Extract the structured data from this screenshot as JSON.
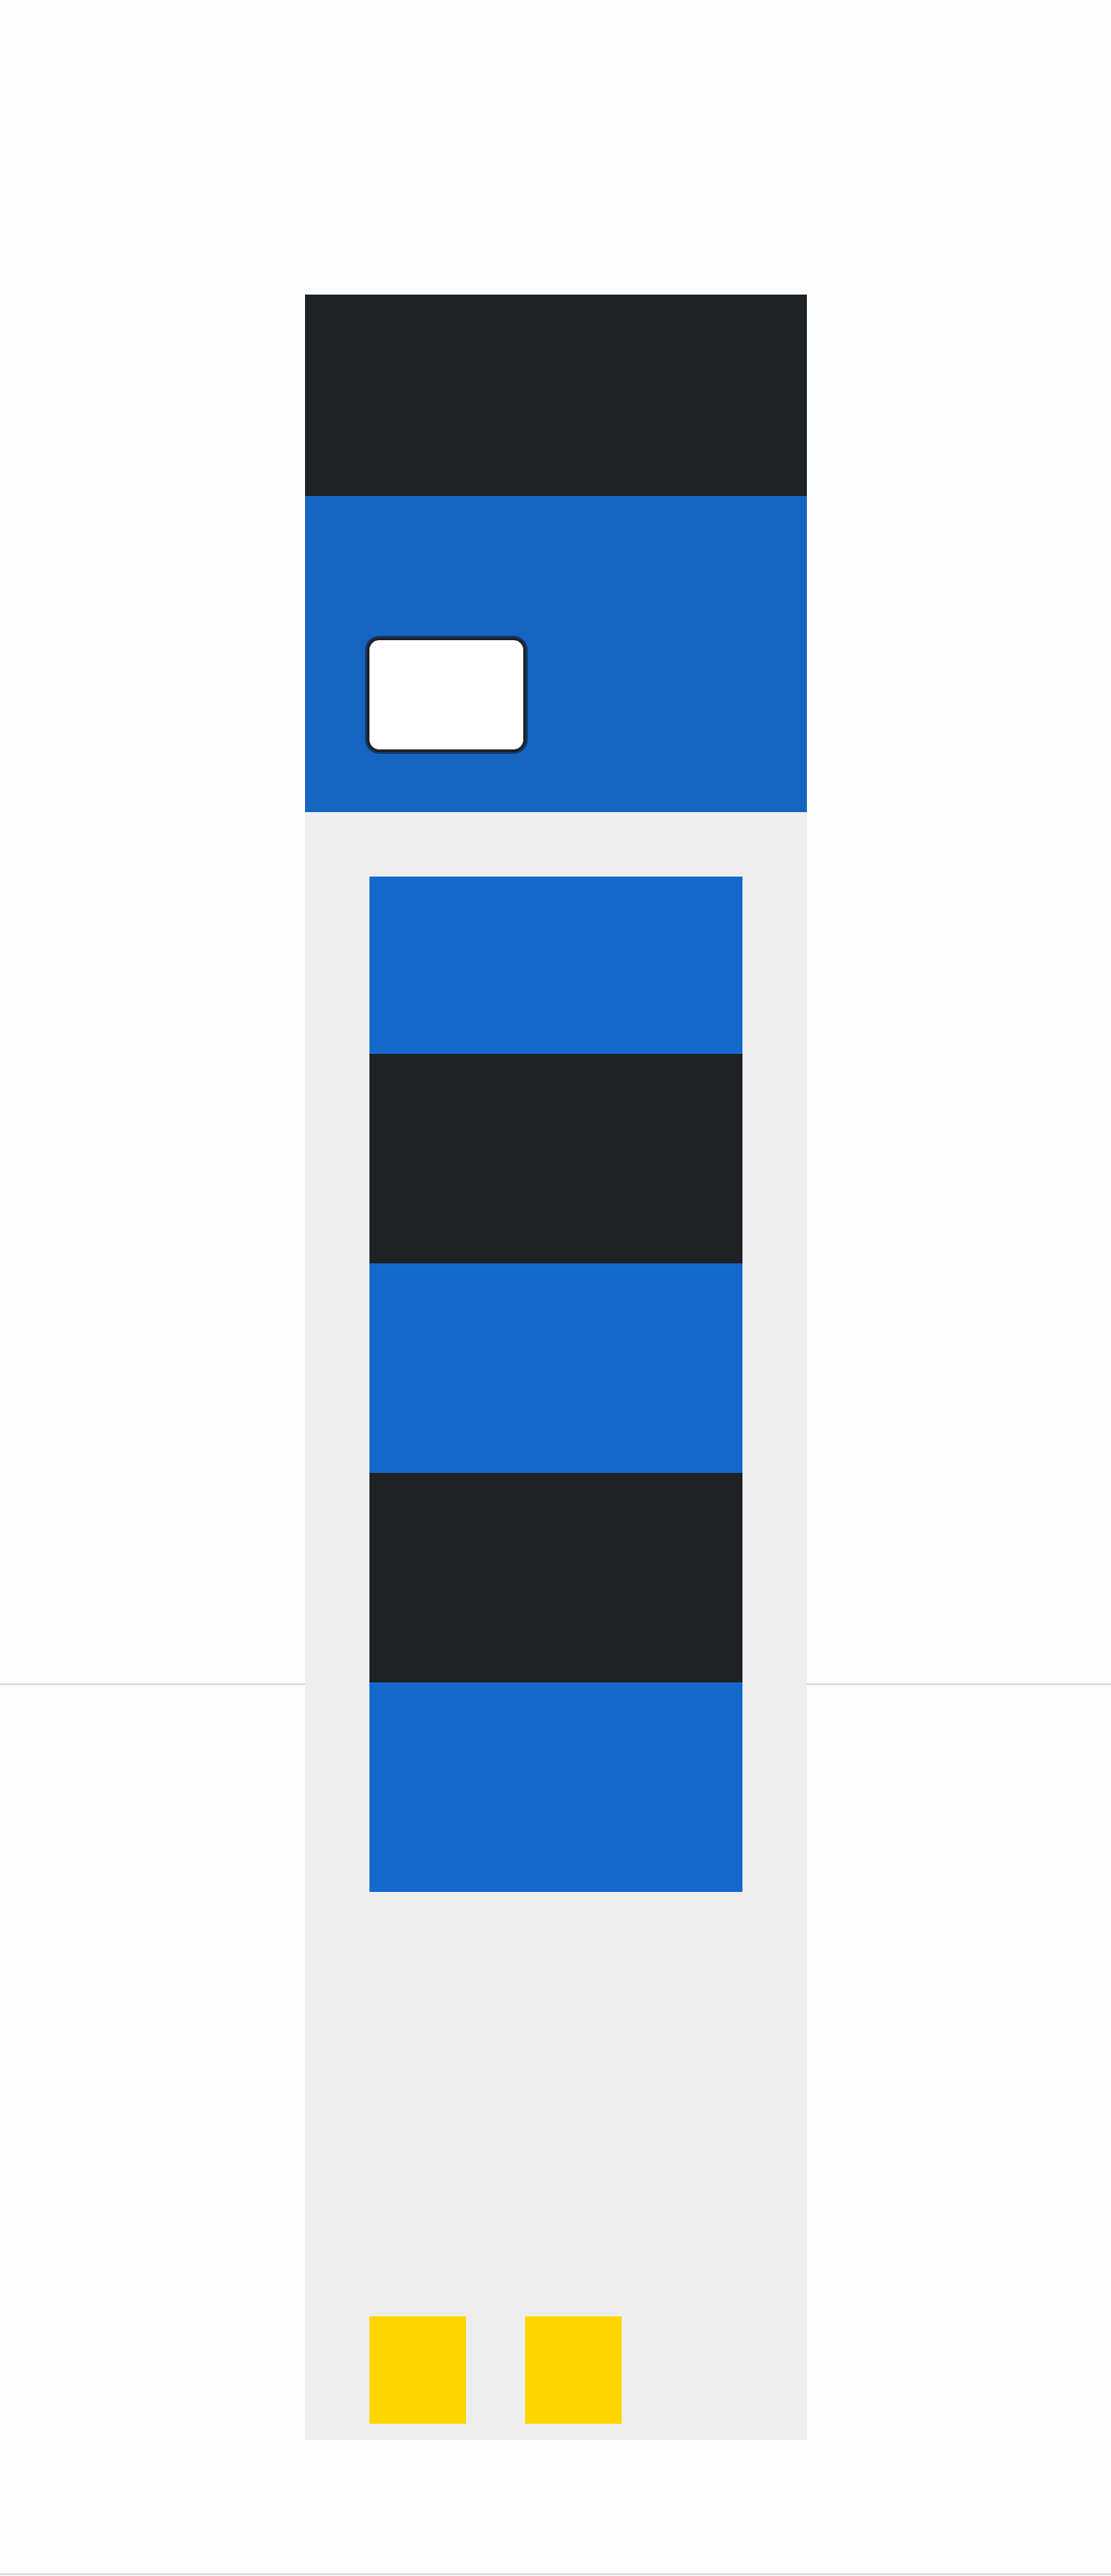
{
  "colors": {
    "page_background": "#fcfcfc",
    "dark": "#202124",
    "accent_blue": "#1565c0",
    "block_blue": "#1469cd",
    "panel_gray": "#eeeeee",
    "accent_yellow": "#ffd600"
  },
  "header": {
    "button_label": ""
  },
  "blocks": [
    {
      "label": ""
    },
    {
      "label": ""
    },
    {
      "label": ""
    },
    {
      "label": ""
    },
    {
      "label": ""
    }
  ],
  "footer_actions": [
    {
      "label": ""
    },
    {
      "label": ""
    }
  ]
}
